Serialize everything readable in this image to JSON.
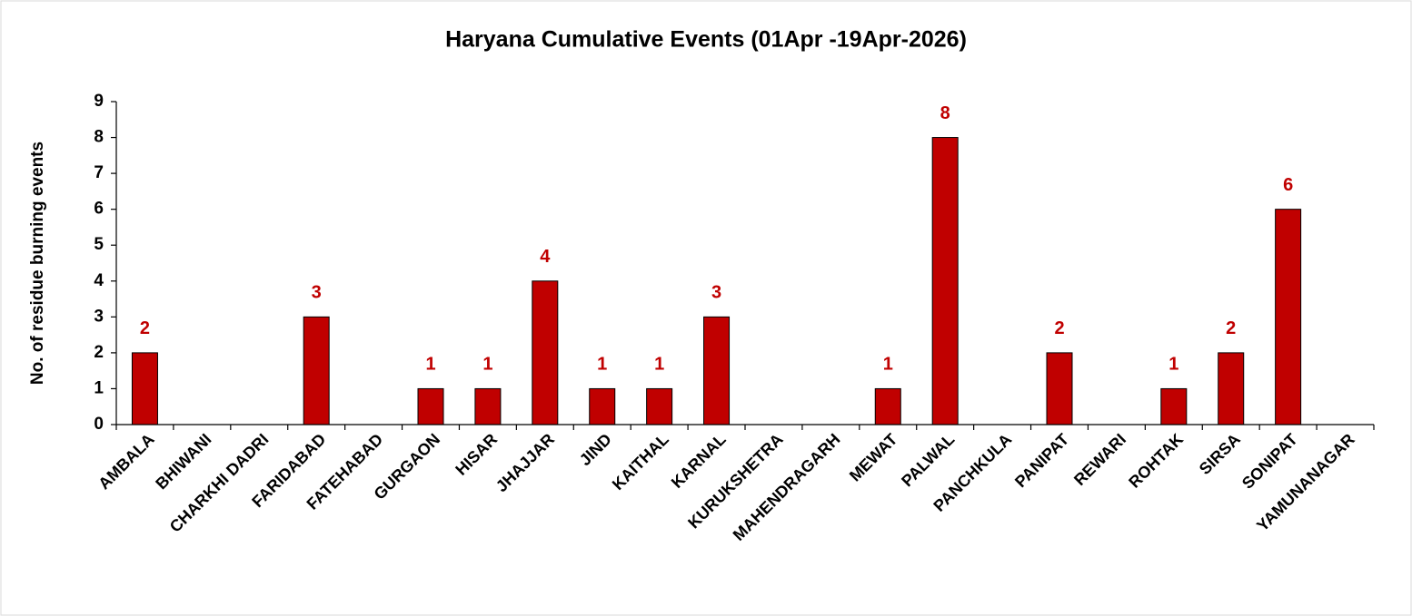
{
  "chart_data": {
    "type": "bar",
    "title": "Haryana Cumulative Events (01Apr -19Apr-2026)",
    "y_label": "No. of residue burning events",
    "categories": [
      "AMBALA",
      "BHIWANI",
      "CHARKHI DADRI",
      "FARIDABAD",
      "FATEHABAD",
      "GURGAON",
      "HISAR",
      "JHAJJAR",
      "JIND",
      "KAITHAL",
      "KARNAL",
      "KURUKSHETRA",
      "MAHENDRAGARH",
      "MEWAT",
      "PALWAL",
      "PANCHKULA",
      "PANIPAT",
      "REWARI",
      "ROHTAK",
      "SIRSA",
      "SONIPAT",
      "YAMUNANAGAR"
    ],
    "values": [
      2,
      0,
      0,
      3,
      0,
      1,
      1,
      4,
      1,
      1,
      3,
      0,
      0,
      1,
      8,
      0,
      2,
      0,
      1,
      2,
      6,
      0
    ],
    "color": "#c00000",
    "label_color": "#c00000",
    "ylim": [
      0,
      9
    ],
    "yticks": [
      0,
      1,
      2,
      3,
      4,
      5,
      6,
      7,
      8,
      9
    ],
    "grid": false
  }
}
